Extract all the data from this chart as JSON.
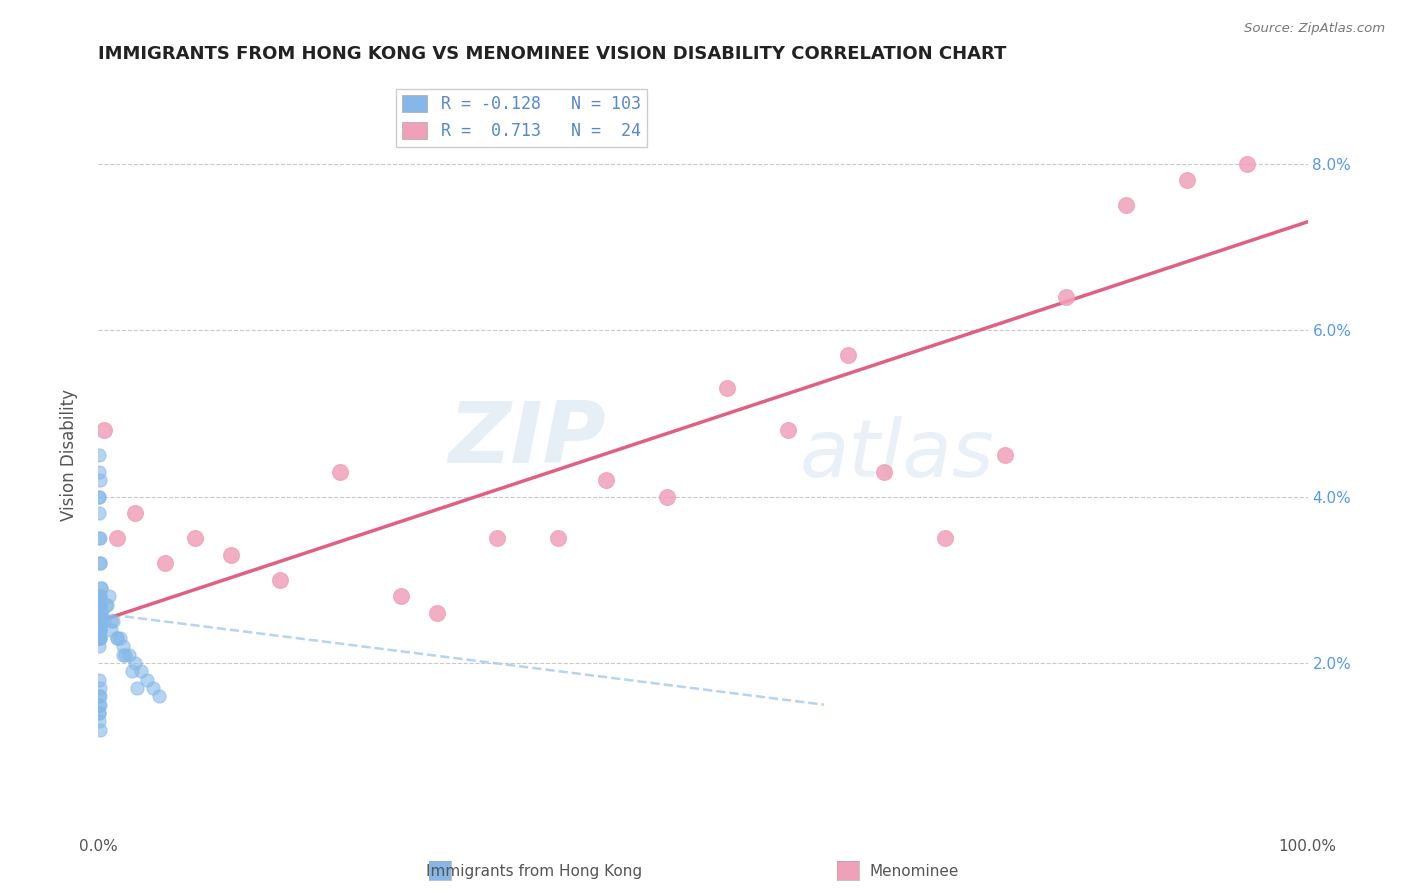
{
  "title": "IMMIGRANTS FROM HONG KONG VS MENOMINEE VISION DISABILITY CORRELATION CHART",
  "source": "Source: ZipAtlas.com",
  "ylabel": "Vision Disability",
  "legend_label1": "Immigrants from Hong Kong",
  "legend_label2": "Menominee",
  "r1": -0.128,
  "n1": 103,
  "r2": 0.713,
  "n2": 24,
  "color_blue": "#85b8e8",
  "color_blue_edge": "#5090d0",
  "color_blue_line": "#6699cc",
  "color_pink": "#f0a0b8",
  "color_pink_line": "#e06080",
  "xlim": [
    0,
    100
  ],
  "ylim": [
    0,
    9
  ],
  "yticks": [
    2,
    4,
    6,
    8
  ],
  "xticks": [
    0,
    100
  ],
  "background_color": "#ffffff",
  "watermark_zip": "ZIP",
  "watermark_atlas": "atlas",
  "blue_scatter_x": [
    0.05,
    0.1,
    0.08,
    0.12,
    0.06,
    0.03,
    0.15,
    0.18,
    0.1,
    0.07,
    0.04,
    0.09,
    0.11,
    0.13,
    0.05,
    0.08,
    0.06,
    0.1,
    0.12,
    0.07,
    0.05,
    0.08,
    0.1,
    0.06,
    0.09,
    0.04,
    0.07,
    0.11,
    0.13,
    0.05,
    0.03,
    0.06,
    0.08,
    0.1,
    0.12,
    0.07,
    0.05,
    0.09,
    0.11,
    0.04,
    0.06,
    0.08,
    0.1,
    0.05,
    0.07,
    0.03,
    0.09,
    0.11,
    0.13,
    0.06,
    0.04,
    0.07,
    0.09,
    0.05,
    0.08,
    0.1,
    0.12,
    0.06,
    0.03,
    0.11,
    0.13,
    0.05,
    0.08,
    0.1,
    0.07,
    0.04,
    0.09,
    0.11,
    0.06,
    0.03,
    0.08,
    0.1,
    0.12,
    0.05,
    0.07,
    0.09,
    0.11,
    0.04,
    0.06,
    0.08,
    0.5,
    1.0,
    1.5,
    2.0,
    2.5,
    3.0,
    3.5,
    4.0,
    4.5,
    5.0,
    0.3,
    0.6,
    0.9,
    1.2,
    1.8,
    2.2,
    2.8,
    3.2,
    0.2,
    0.7,
    1.0,
    1.5,
    2.0
  ],
  "blue_scatter_y": [
    2.5,
    2.3,
    2.7,
    2.4,
    2.6,
    2.2,
    2.8,
    2.9,
    2.5,
    2.3,
    2.4,
    2.6,
    2.7,
    2.5,
    2.3,
    2.8,
    2.4,
    2.6,
    2.5,
    2.7,
    2.3,
    2.4,
    2.6,
    2.5,
    2.7,
    2.8,
    2.3,
    2.5,
    2.4,
    2.6,
    2.7,
    2.5,
    2.3,
    2.4,
    2.6,
    2.8,
    2.5,
    2.7,
    2.3,
    2.4,
    2.6,
    2.5,
    2.7,
    2.8,
    2.3,
    2.4,
    2.6,
    2.5,
    2.7,
    2.3,
    2.4,
    2.6,
    2.8,
    2.5,
    2.7,
    2.3,
    2.4,
    2.6,
    2.5,
    2.7,
    3.2,
    3.5,
    3.8,
    4.2,
    4.5,
    4.0,
    3.5,
    3.2,
    4.0,
    4.3,
    1.8,
    1.6,
    1.5,
    1.4,
    1.3,
    1.2,
    1.7,
    1.6,
    1.5,
    1.4,
    2.5,
    2.4,
    2.3,
    2.2,
    2.1,
    2.0,
    1.9,
    1.8,
    1.7,
    1.6,
    2.6,
    2.7,
    2.8,
    2.5,
    2.3,
    2.1,
    1.9,
    1.7,
    2.9,
    2.7,
    2.5,
    2.3,
    2.1
  ],
  "pink_scatter_x": [
    0.5,
    1.5,
    3.0,
    5.5,
    8.0,
    11.0,
    15.0,
    20.0,
    25.0,
    28.0,
    33.0,
    38.0,
    42.0,
    47.0,
    52.0,
    57.0,
    62.0,
    65.0,
    70.0,
    75.0,
    80.0,
    85.0,
    90.0,
    95.0
  ],
  "pink_scatter_y": [
    4.8,
    3.5,
    3.8,
    3.2,
    3.5,
    3.3,
    3.0,
    4.3,
    2.8,
    2.6,
    3.5,
    3.5,
    4.2,
    4.0,
    5.3,
    4.8,
    5.7,
    4.3,
    3.5,
    4.5,
    6.4,
    7.5,
    7.8,
    8.0
  ],
  "blue_line_x": [
    0,
    60
  ],
  "blue_line_y": [
    2.6,
    1.5
  ],
  "pink_line_x": [
    0,
    100
  ],
  "pink_line_y": [
    2.5,
    7.3
  ]
}
